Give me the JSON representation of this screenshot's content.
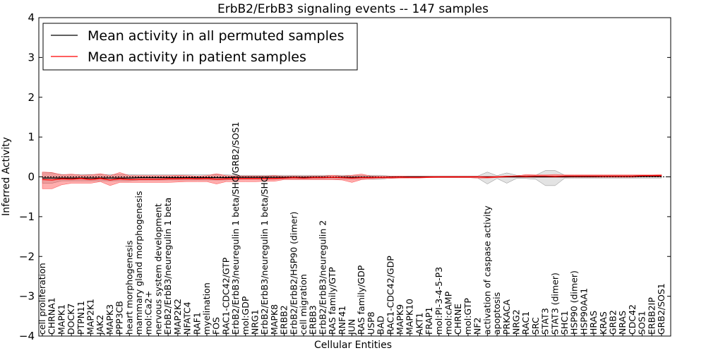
{
  "chart_data": {
    "type": "line",
    "title": "ErbB2/ErbB3 signaling events -- 147 samples",
    "xlabel": "Cellular Entities",
    "ylabel": "Inferred Activity",
    "ylim": [
      -4,
      4
    ],
    "yticks": [
      -4,
      -3,
      -2,
      -1,
      0,
      1,
      2,
      3,
      4
    ],
    "ytick_labels": [
      "−4",
      "−3",
      "−2",
      "−1",
      "0",
      "1",
      "2",
      "3",
      "4"
    ],
    "legend_position": "top-left",
    "categories": [
      "cell proliferation",
      "CHRNA1",
      "MAPK1",
      "DOCK7",
      "PTPN11",
      "MAP2K1",
      "JAK2",
      "MAPK3",
      "PPP3CB",
      "heart morphogenesis",
      "mammary gland morphogenesis",
      "mol:Ca2+",
      "nervous system development",
      "ErbB2/ErbB3/neuregulin 1 beta",
      "MAP2K2",
      "NFATC4",
      "RAF1",
      "myelination",
      "FOS",
      "RAC1-CDC42/GTP",
      "ErbB2/ErbB3/neuregulin 1 beta/SHC/GRB2/SOS1",
      "mol:GDP",
      "NRG1",
      "ErbB2/ErbB3/neuregulin 1 beta/SHC",
      "MAPK8",
      "ERBB2",
      "ErbB2/ErbB2/HSP90 (dimer)",
      "cell migration",
      "ERBB3",
      "ErbB2/ErbB3/neuregulin 2",
      "RAS family/GTP",
      "RNF41",
      "JUN",
      "RAS family/GDP",
      "USP8",
      "BAD",
      "RAC1-CDC42/GDP",
      "MAPK9",
      "MAPK10",
      "AKT1",
      "FRAP1",
      "mol:PI-3-4-5-P3",
      "mol:cAMP",
      "CHRNE",
      "mol:GTP",
      "NF2",
      "activation of caspase activity",
      "apoptosis",
      "PRKACA",
      "NRG2",
      "RAC1",
      "SRC",
      "STAT3",
      "STAT3 (dimer)",
      "SHC1",
      "HSP90 (dimer)",
      "HSP90AA1",
      "HRAS",
      "KRAS",
      "GRB2",
      "NRAS",
      "CDC42",
      "SOS1",
      "ERBB2IP",
      "GRB2/SOS1"
    ],
    "series": [
      {
        "name": "Mean activity in all permuted samples",
        "color": "#000000",
        "values": [
          -0.03,
          -0.03,
          -0.03,
          -0.03,
          -0.03,
          -0.03,
          -0.03,
          -0.03,
          -0.03,
          -0.03,
          -0.02,
          -0.02,
          -0.02,
          -0.02,
          -0.02,
          -0.02,
          -0.02,
          -0.02,
          -0.02,
          -0.02,
          -0.01,
          -0.01,
          -0.01,
          -0.01,
          -0.01,
          -0.01,
          -0.01,
          -0.01,
          -0.01,
          -0.01,
          -0.01,
          -0.01,
          -0.01,
          -0.01,
          -0.01,
          -0.01,
          -0.005,
          -0.005,
          0,
          0,
          0,
          0,
          0,
          0,
          0,
          0,
          0,
          0,
          0,
          0,
          0,
          0,
          0,
          0,
          0,
          0.005,
          0.005,
          0.005,
          0.01,
          0.01,
          0.01,
          0.01,
          0.01,
          0.01,
          0.01
        ]
      },
      {
        "name": "Mean activity in patient samples",
        "color": "#ff0000",
        "values": [
          -0.07,
          -0.08,
          -0.05,
          -0.06,
          -0.04,
          -0.07,
          -0.04,
          -0.08,
          -0.05,
          -0.07,
          -0.06,
          -0.06,
          -0.06,
          -0.05,
          -0.05,
          -0.04,
          -0.05,
          -0.04,
          -0.06,
          -0.05,
          -0.04,
          -0.04,
          -0.04,
          -0.04,
          -0.04,
          -0.03,
          -0.02,
          -0.03,
          -0.02,
          -0.02,
          -0.01,
          -0.02,
          -0.03,
          -0.02,
          -0.02,
          -0.01,
          -0.01,
          -0.01,
          -0.01,
          -0.01,
          -0.005,
          0,
          0,
          0,
          0,
          0,
          -0.01,
          0,
          0.01,
          0.02,
          0.01,
          0.02,
          0.02,
          0.01,
          0.02,
          0.02,
          0.02,
          0.02,
          0.02,
          0.02,
          0.02,
          0.02,
          0.03,
          0.03,
          0.03
        ]
      }
    ],
    "patient_band": {
      "upper": [
        0.12,
        0.11,
        0.05,
        0.07,
        0.04,
        0.05,
        0.08,
        0.03,
        0.11,
        0.03,
        0.03,
        0.03,
        0.03,
        0.03,
        0.04,
        0.03,
        0.02,
        0.03,
        0.08,
        0.03,
        0.02,
        0.02,
        0.02,
        0.02,
        0.03,
        0.01,
        0.02,
        0.01,
        0.02,
        0.02,
        0.04,
        0.02,
        0.04,
        0.07,
        0.02,
        0.01,
        0.01,
        0.02,
        0.01,
        0.01,
        0.01,
        0.01,
        0.01,
        0.01,
        0.01,
        0.01,
        0.01,
        0.01,
        0.02,
        0.02,
        0.06,
        0.05,
        0.05,
        0.06,
        0.05,
        0.05,
        0.05,
        0.05,
        0.05,
        0.05,
        0.05,
        0.05,
        0.05,
        0.05,
        0.06
      ],
      "lower": [
        -0.3,
        -0.3,
        -0.2,
        -0.16,
        -0.16,
        -0.16,
        -0.12,
        -0.22,
        -0.14,
        -0.14,
        -0.14,
        -0.14,
        -0.14,
        -0.14,
        -0.13,
        -0.12,
        -0.12,
        -0.12,
        -0.18,
        -0.12,
        -0.12,
        -0.12,
        -0.12,
        -0.11,
        -0.11,
        -0.07,
        -0.07,
        -0.07,
        -0.07,
        -0.07,
        -0.07,
        -0.08,
        -0.14,
        -0.07,
        -0.05,
        -0.04,
        -0.04,
        -0.03,
        -0.03,
        -0.03,
        -0.02,
        -0.02,
        -0.02,
        -0.02,
        -0.02,
        -0.03,
        -0.03,
        -0.02,
        -0.01,
        -0.01,
        -0.01,
        -0.01,
        -0.01,
        -0.01,
        -0.01,
        -0.01,
        -0.01,
        -0.01,
        -0.01,
        -0.01,
        -0.01,
        -0.01,
        0.0,
        0.0,
        0.0
      ]
    },
    "permuted_band": {
      "upper": [
        0.12,
        0.1,
        0.06,
        0.06,
        0.06,
        0.06,
        0.06,
        0.06,
        0.06,
        0.06,
        0.05,
        0.05,
        0.05,
        0.05,
        0.05,
        0.05,
        0.05,
        0.05,
        0.05,
        0.05,
        0.04,
        0.04,
        0.04,
        0.04,
        0.04,
        0.04,
        0.04,
        0.04,
        0.04,
        0.04,
        0.04,
        0.04,
        0.04,
        0.04,
        0.04,
        0.04,
        0.02,
        0.02,
        0.02,
        0.02,
        0.02,
        0.02,
        0.02,
        0.02,
        0.02,
        0.02,
        0.12,
        0.03,
        0.1,
        0.04,
        0.04,
        0.04,
        0.16,
        0.16,
        0.04,
        0.04,
        0.04,
        0.04,
        0.04,
        0.04,
        0.04,
        0.04,
        0.04,
        0.04,
        0.04
      ],
      "lower": [
        -0.16,
        -0.16,
        -0.1,
        -0.1,
        -0.1,
        -0.1,
        -0.1,
        -0.1,
        -0.1,
        -0.1,
        -0.08,
        -0.08,
        -0.08,
        -0.08,
        -0.08,
        -0.08,
        -0.08,
        -0.08,
        -0.08,
        -0.08,
        -0.06,
        -0.06,
        -0.06,
        -0.06,
        -0.06,
        -0.06,
        -0.06,
        -0.06,
        -0.06,
        -0.06,
        -0.06,
        -0.06,
        -0.06,
        -0.06,
        -0.06,
        -0.06,
        -0.03,
        -0.03,
        -0.02,
        -0.02,
        -0.02,
        -0.02,
        -0.02,
        -0.02,
        -0.02,
        -0.03,
        -0.18,
        -0.04,
        -0.16,
        -0.04,
        -0.04,
        -0.06,
        -0.22,
        -0.22,
        -0.03,
        -0.03,
        -0.03,
        -0.03,
        -0.03,
        -0.03,
        -0.03,
        -0.03,
        -0.03,
        -0.03,
        -0.03
      ]
    },
    "grid": false
  }
}
